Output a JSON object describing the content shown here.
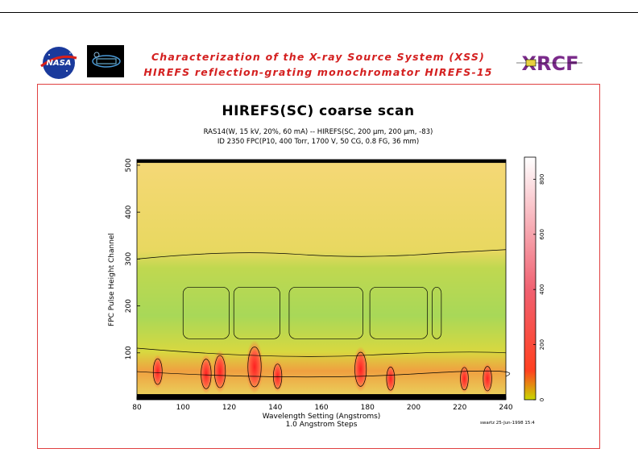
{
  "header": {
    "line1": "Characterization of the X-ray Source System (XSS)",
    "line2": "HIREFS reflection-grating monochromator HIREFS-15",
    "nasa_logo_text": "NASA",
    "xrcf_logo_text": "XRCF"
  },
  "footer": {
    "stamp": "swartz 25-Jun-1998 15:4"
  },
  "chart_data": {
    "type": "heatmap",
    "title": "HIREFS(SC) coarse scan",
    "subtitle_1": "RAS14(W, 15 kV, 20%, 60 mA) -- HIREFS(SC, 200 µm, 200 µm, -83)",
    "subtitle_2": "ID 2350 FPC(P10, 400 Torr, 1700 V, 50 CG, 0.8 FG, 36 mm)",
    "xlabel": "Wavelength Setting (Angstroms)",
    "xlabel2": "1.0 Angstrom Steps",
    "ylabel": "FPC Pulse Height Channel",
    "xlim": [
      80,
      240
    ],
    "ylim": [
      0,
      512
    ],
    "xticks": [
      80,
      100,
      120,
      140,
      160,
      180,
      200,
      220,
      240
    ],
    "yticks": [
      100,
      200,
      300,
      400,
      500
    ],
    "colorbar": {
      "range": [
        0,
        880
      ],
      "ticks": [
        0,
        200,
        400,
        600,
        800
      ],
      "colors": [
        "#c8d800",
        "#ff6040",
        "#ffffff"
      ]
    },
    "peaks": [
      {
        "x": 89,
        "y": 60,
        "value": 200
      },
      {
        "x": 110,
        "y": 55,
        "value": 260
      },
      {
        "x": 116,
        "y": 60,
        "value": 300
      },
      {
        "x": 131,
        "y": 70,
        "value": 420
      },
      {
        "x": 141,
        "y": 50,
        "value": 180
      },
      {
        "x": 177,
        "y": 65,
        "value": 330
      },
      {
        "x": 190,
        "y": 45,
        "value": 160
      },
      {
        "x": 222,
        "y": 45,
        "value": 150
      },
      {
        "x": 232,
        "y": 45,
        "value": 180
      }
    ],
    "grid": false
  }
}
